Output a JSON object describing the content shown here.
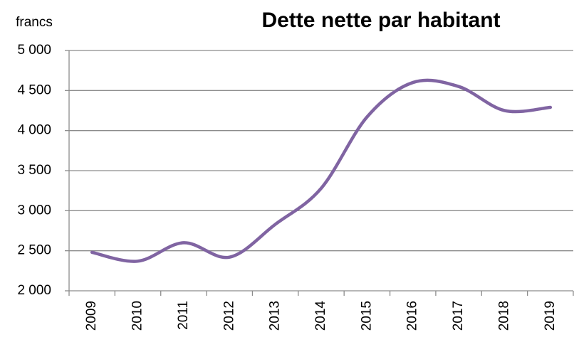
{
  "chart_data": {
    "type": "line",
    "title": "Dette nette par habitant",
    "y_label": "francs",
    "categories": [
      "2009",
      "2010",
      "2011",
      "2012",
      "2013",
      "2014",
      "2015",
      "2016",
      "2017",
      "2018",
      "2019"
    ],
    "series": [
      {
        "name": "Dette nette par habitant",
        "color": "#8064a2",
        "values": [
          2480,
          2370,
          2600,
          2420,
          2830,
          3280,
          4170,
          4600,
          4550,
          4250,
          4290
        ]
      }
    ],
    "ylim": [
      2000,
      5000
    ],
    "yticks": [
      {
        "value": 2000,
        "label": "2 000"
      },
      {
        "value": 2500,
        "label": "2 500"
      },
      {
        "value": 3000,
        "label": "3 000"
      },
      {
        "value": 3500,
        "label": "3 500"
      },
      {
        "value": 4000,
        "label": "4 000"
      },
      {
        "value": 4500,
        "label": "4 500"
      },
      {
        "value": 5000,
        "label": "5 000"
      }
    ],
    "grid": true,
    "smooth": true
  }
}
